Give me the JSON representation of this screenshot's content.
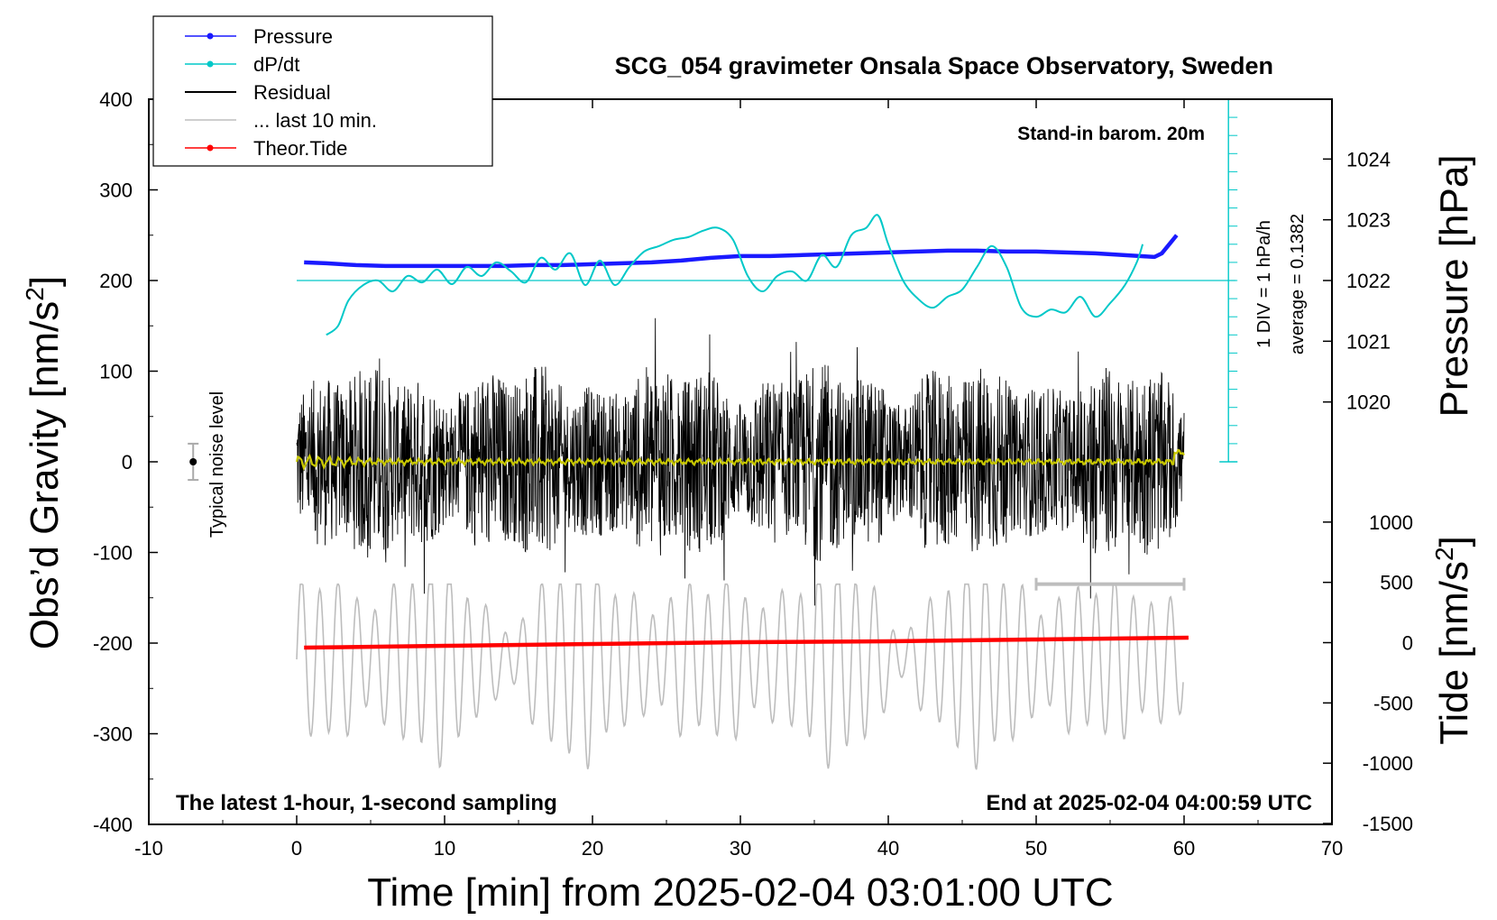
{
  "chart_data": {
    "type": "line",
    "title": "SCG_054 gravimeter Onsala Space Observatory, Sweden",
    "xlabel": "Time [min] from 2025-02-04 03:01:00 UTC",
    "ylabel_left": "Obs’d Gravity [nm/s",
    "ylabel_left_sup": "2",
    "ylabel_left_close": "]",
    "ylabel_pressure": "Pressure [hPa]",
    "ylabel_tide": "Tide [nm/s",
    "ylabel_tide_sup": "2",
    "ylabel_tide_close": "]",
    "xlim": [
      -10,
      70
    ],
    "ylim": [
      -400,
      400
    ],
    "x_ticks": [
      -10,
      0,
      10,
      20,
      30,
      40,
      50,
      60,
      70
    ],
    "x_tick_labels": [
      "-10",
      "0",
      "10",
      "20",
      "30",
      "40",
      "50",
      "60",
      "70"
    ],
    "y_ticks": [
      400,
      300,
      200,
      100,
      0,
      -100,
      -200,
      -300,
      -400
    ],
    "y_tick_labels": [
      "400",
      "300",
      "200",
      "100",
      "0",
      "-100",
      "-200",
      "-300",
      "-400"
    ],
    "pressure_ticks": [
      1024,
      1023,
      1022,
      1021,
      1020
    ],
    "pressure_tick_labels": [
      "1024",
      "1023",
      "1022",
      "1021",
      "1020"
    ],
    "pressure_ref": {
      "value_hpa": 1022,
      "gravity_at_ref": 200,
      "gravity_per_hpa": 67
    },
    "tide_ticks": [
      1000,
      500,
      0,
      -500,
      -1000,
      -1500
    ],
    "tide_tick_labels": [
      "1000",
      "500",
      "0",
      "-500",
      "-1000",
      "-1500"
    ],
    "tide_ref": {
      "tide_at_zero_gravity": 1500,
      "gravity_per_tide_unit": 0.133
    },
    "legend": [
      {
        "label": "Pressure",
        "color": "#1a1aff",
        "marker": true
      },
      {
        "label": "dP/dt",
        "color": "#00c8c8",
        "marker": true
      },
      {
        "label": "Residual",
        "color": "#000000",
        "marker": false
      },
      {
        "label": "... last 10 min.",
        "color": "#bdbdbd",
        "marker": false
      },
      {
        "label": "Theor.Tide",
        "color": "#ff0000",
        "marker": true
      }
    ],
    "annotations": {
      "barom": "Stand-in barom. 20m",
      "latest": "The latest 1-hour, 1-second sampling",
      "end": "End at 2025-02-04 04:00:59 UTC",
      "div": "1 DIV = 1 hPa/h",
      "average": "average = 0.1382",
      "noise": "Typical noise level"
    },
    "noise_bar": {
      "x": -7,
      "center": 0,
      "half_range": 20
    },
    "gray_range_bar": {
      "x_start": 50,
      "x_end": 60,
      "y": -135
    },
    "dpdt_baseline": 200,
    "dpdt_scale": {
      "x": 63,
      "y_from": 0,
      "y_to": 400,
      "divisions": 20
    },
    "series": [
      {
        "name": "Pressure",
        "color": "#1a1aff",
        "x": [
          0.5,
          2,
          4,
          6,
          8,
          10,
          12,
          14,
          16,
          18,
          20,
          22,
          24,
          26,
          28,
          30,
          32,
          34,
          36,
          38,
          40,
          42,
          44,
          46,
          48,
          50,
          52,
          54,
          56,
          57,
          58,
          58.5,
          59,
          59.5
        ],
        "y": [
          220,
          219,
          217,
          216,
          216,
          216,
          216,
          216,
          217,
          217,
          218,
          219,
          220,
          222,
          225,
          227,
          227,
          228,
          229,
          230,
          231,
          232,
          233,
          233,
          232,
          232,
          231,
          230,
          228,
          227,
          226,
          230,
          240,
          250
        ]
      },
      {
        "name": "dP/dt",
        "color": "#00c8c8",
        "x": [
          2,
          2.8,
          3.5,
          4.5,
          5.5,
          6.5,
          7.5,
          8.5,
          9.5,
          10.5,
          11.5,
          12.5,
          13.5,
          14.5,
          15.5,
          16.5,
          17.5,
          18.5,
          19.5,
          20.5,
          21.5,
          22.5,
          23.5,
          24.5,
          25.5,
          26.5,
          27.5,
          28.5,
          29.5,
          30.5,
          31.5,
          32.5,
          33.5,
          34.5,
          35.5,
          36.5,
          37.5,
          38.5,
          39.3,
          40,
          41,
          42,
          43,
          44,
          45,
          46,
          47,
          48,
          49,
          50,
          51,
          52,
          53,
          54,
          55,
          56,
          56.8,
          57.2
        ],
        "y": [
          140,
          150,
          178,
          195,
          200,
          188,
          205,
          198,
          212,
          196,
          215,
          205,
          220,
          210,
          198,
          225,
          212,
          230,
          195,
          222,
          195,
          215,
          232,
          238,
          245,
          248,
          255,
          258,
          245,
          205,
          188,
          205,
          210,
          200,
          228,
          215,
          250,
          258,
          272,
          240,
          200,
          180,
          170,
          182,
          190,
          215,
          238,
          215,
          170,
          160,
          168,
          165,
          182,
          160,
          175,
          195,
          220,
          240
        ]
      },
      {
        "name": "Theor.Tide",
        "color": "#ff0000",
        "x": [
          0.5,
          10,
          20,
          30,
          40,
          50,
          60.3
        ],
        "y": [
          -205,
          -203,
          -201,
          -199,
          -198,
          -196,
          -194
        ]
      }
    ]
  }
}
